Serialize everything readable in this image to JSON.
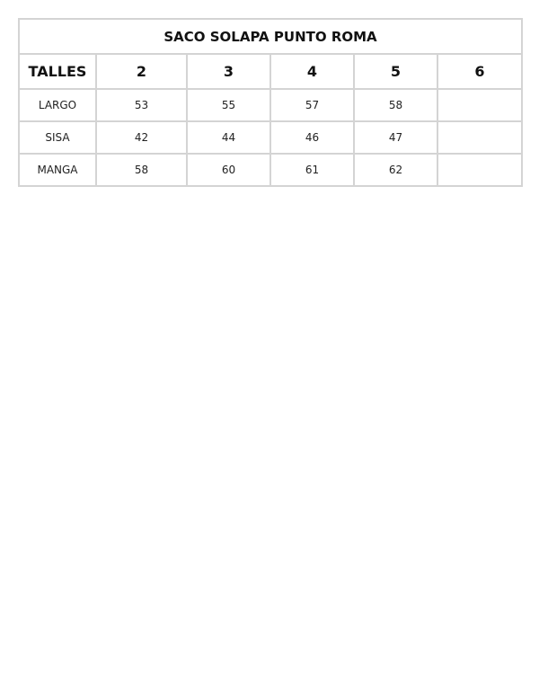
{
  "table": {
    "title": "SACO SOLAPA PUNTO ROMA",
    "headers": [
      "TALLES",
      "2",
      "3",
      "4",
      "5",
      "6"
    ],
    "rows": [
      [
        "LARGO",
        "53",
        "55",
        "57",
        "58",
        ""
      ],
      [
        "SISA",
        "42",
        "44",
        "46",
        "47",
        ""
      ],
      [
        "MANGA",
        "58",
        "60",
        "61",
        "62",
        ""
      ]
    ]
  }
}
